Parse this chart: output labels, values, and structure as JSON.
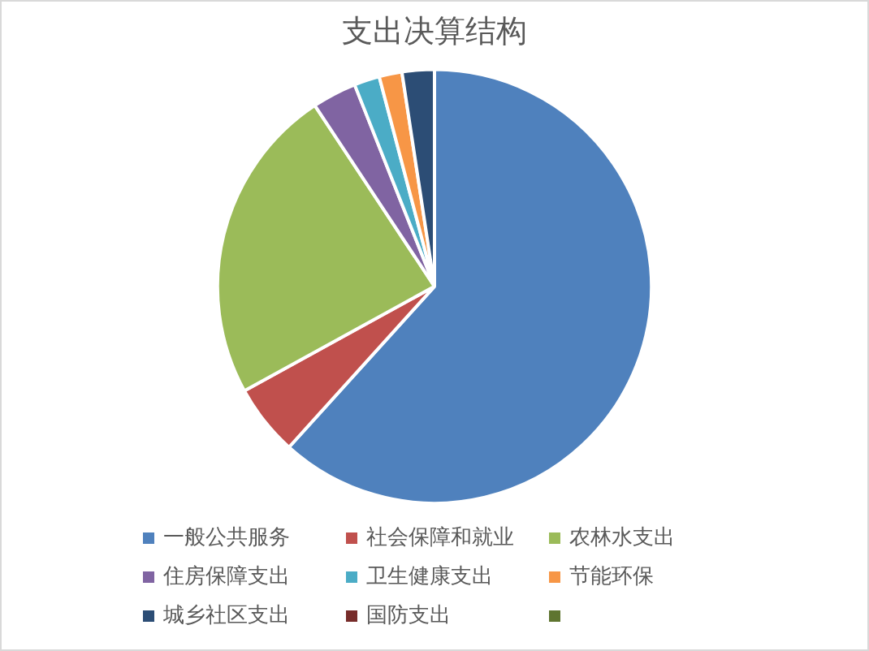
{
  "chart_data": {
    "type": "pie",
    "title": "支出决算结构",
    "categories": [
      "一般公共服务",
      "社会保障和就业",
      "农林水支出",
      "住房保障支出",
      "卫生健康支出",
      "节能环保",
      "城乡社区支出",
      "国防支出",
      null
    ],
    "values": [
      61.7,
      5.3,
      23.7,
      3.3,
      1.9,
      1.7,
      2.4,
      0,
      0
    ],
    "colors": [
      "#4f81bd",
      "#c0504d",
      "#9bbb59",
      "#8064a2",
      "#4bacc6",
      "#f79646",
      "#2c4d75",
      "#772c2a",
      "#5f7530"
    ],
    "legend": "bottom"
  }
}
